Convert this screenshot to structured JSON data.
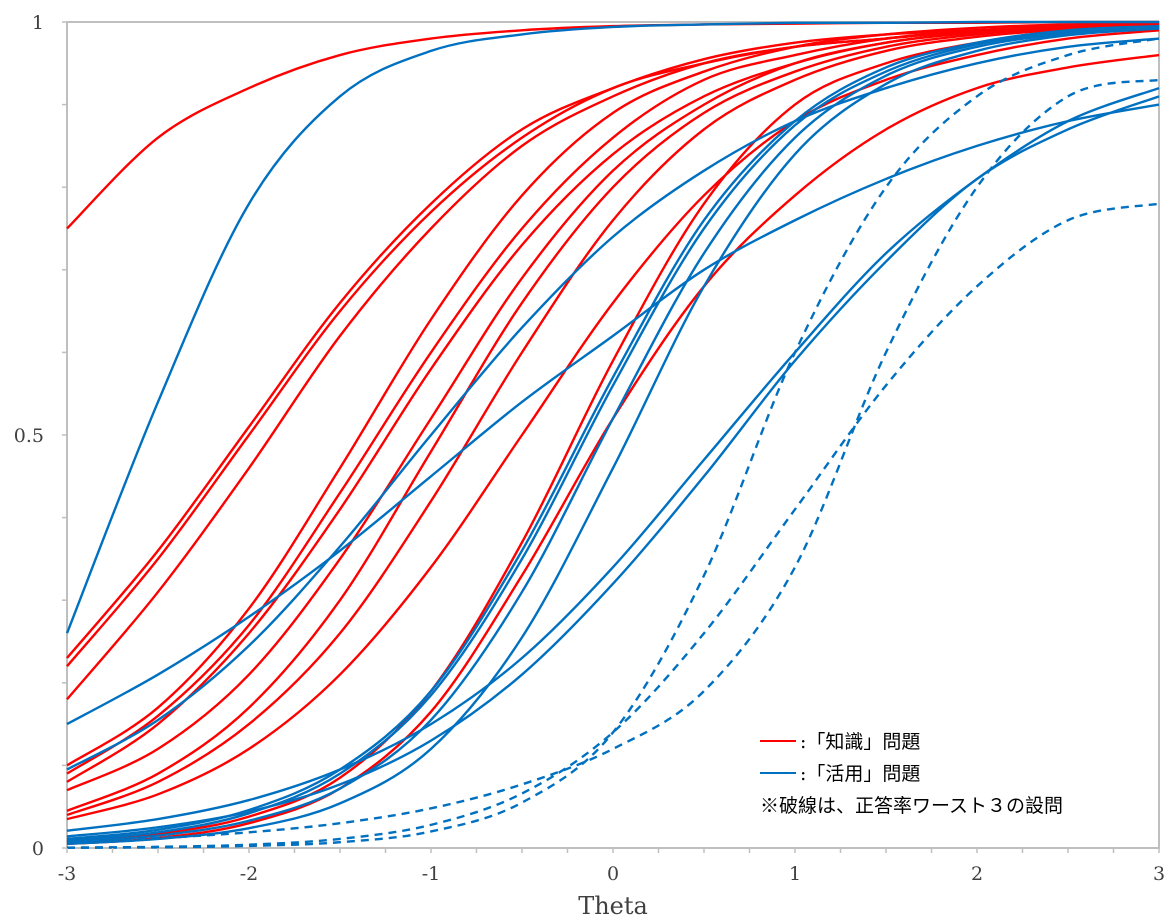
{
  "chart_data": {
    "type": "line",
    "xlabel": "Theta",
    "ylabel": "",
    "xlim": [
      -3,
      3
    ],
    "ylim": [
      0,
      1
    ],
    "x_ticks": [
      "-3",
      "-2",
      "-1",
      "0",
      "1",
      "2",
      "3"
    ],
    "x_tick_values": [
      -3,
      -2,
      -1,
      0,
      1,
      2,
      3
    ],
    "y_ticks": [
      "0",
      "0.5",
      "1"
    ],
    "y_tick_values": [
      0,
      0.5,
      1
    ],
    "grid": false,
    "legend_position": "bottom-right",
    "legend": [
      {
        "label": ":「知識」問題",
        "color": "#ff0000",
        "style": "solid"
      },
      {
        "label": ":「活用」問題",
        "color": "#0070c0",
        "style": "solid"
      }
    ],
    "note": "※破線は、正答率ワースト３の設問",
    "x": [
      -3,
      -2.5,
      -2,
      -1.5,
      -1,
      -0.5,
      0,
      0.5,
      1,
      1.5,
      2,
      2.5,
      3
    ],
    "series": [
      {
        "group": "知識",
        "color": "#ff0000",
        "dashed": false,
        "values": [
          0.75,
          0.86,
          0.92,
          0.96,
          0.98,
          0.99,
          0.995,
          0.997,
          0.998,
          0.999,
          0.999,
          1.0,
          1.0
        ]
      },
      {
        "group": "知識",
        "color": "#ff0000",
        "dashed": false,
        "values": [
          0.23,
          0.36,
          0.51,
          0.66,
          0.78,
          0.87,
          0.92,
          0.955,
          0.975,
          0.985,
          0.99,
          0.995,
          0.997
        ]
      },
      {
        "group": "知識",
        "color": "#ff0000",
        "dashed": false,
        "values": [
          0.22,
          0.35,
          0.5,
          0.65,
          0.77,
          0.86,
          0.92,
          0.95,
          0.97,
          0.98,
          0.99,
          0.994,
          0.996
        ]
      },
      {
        "group": "知識",
        "color": "#ff0000",
        "dashed": false,
        "values": [
          0.18,
          0.31,
          0.46,
          0.62,
          0.75,
          0.85,
          0.91,
          0.95,
          0.97,
          0.98,
          0.99,
          0.994,
          0.996
        ]
      },
      {
        "group": "知識",
        "color": "#ff0000",
        "dashed": false,
        "values": [
          0.1,
          0.17,
          0.29,
          0.46,
          0.64,
          0.79,
          0.89,
          0.94,
          0.97,
          0.985,
          0.993,
          0.997,
          0.998
        ]
      },
      {
        "group": "知識",
        "color": "#ff0000",
        "dashed": false,
        "values": [
          0.09,
          0.16,
          0.27,
          0.43,
          0.6,
          0.75,
          0.86,
          0.93,
          0.96,
          0.98,
          0.99,
          0.995,
          0.998
        ]
      },
      {
        "group": "知識",
        "color": "#ff0000",
        "dashed": false,
        "values": [
          0.08,
          0.15,
          0.26,
          0.41,
          0.58,
          0.73,
          0.84,
          0.91,
          0.95,
          0.975,
          0.987,
          0.993,
          0.996
        ]
      },
      {
        "group": "知識",
        "color": "#ff0000",
        "dashed": false,
        "values": [
          0.07,
          0.12,
          0.21,
          0.35,
          0.52,
          0.69,
          0.82,
          0.9,
          0.95,
          0.975,
          0.988,
          0.994,
          0.997
        ]
      },
      {
        "group": "知識",
        "color": "#ff0000",
        "dashed": false,
        "values": [
          0.045,
          0.09,
          0.17,
          0.3,
          0.48,
          0.66,
          0.8,
          0.89,
          0.94,
          0.97,
          0.985,
          0.993,
          0.996
        ]
      },
      {
        "group": "知識",
        "color": "#ff0000",
        "dashed": false,
        "values": [
          0.04,
          0.08,
          0.15,
          0.26,
          0.42,
          0.6,
          0.76,
          0.87,
          0.93,
          0.965,
          0.982,
          0.991,
          0.995
        ]
      },
      {
        "group": "知識",
        "color": "#ff0000",
        "dashed": false,
        "values": [
          0.035,
          0.065,
          0.12,
          0.21,
          0.34,
          0.5,
          0.66,
          0.79,
          0.88,
          0.93,
          0.96,
          0.98,
          0.99
        ]
      },
      {
        "group": "知識",
        "color": "#ff0000",
        "dashed": false,
        "values": [
          0.008,
          0.017,
          0.038,
          0.085,
          0.19,
          0.37,
          0.59,
          0.78,
          0.9,
          0.95,
          0.975,
          0.99,
          0.995
        ]
      },
      {
        "group": "知識",
        "color": "#ff0000",
        "dashed": false,
        "values": [
          0.005,
          0.012,
          0.03,
          0.072,
          0.165,
          0.33,
          0.52,
          0.68,
          0.79,
          0.87,
          0.92,
          0.945,
          0.96
        ]
      },
      {
        "group": "活用",
        "color": "#0070c0",
        "dashed": false,
        "values": [
          0.26,
          0.54,
          0.78,
          0.91,
          0.965,
          0.985,
          0.994,
          0.997,
          0.999,
          0.999,
          1.0,
          1.0,
          1.0
        ]
      },
      {
        "group": "活用",
        "color": "#0070c0",
        "dashed": false,
        "values": [
          0.15,
          0.21,
          0.28,
          0.36,
          0.45,
          0.54,
          0.62,
          0.7,
          0.76,
          0.81,
          0.85,
          0.88,
          0.9
        ]
      },
      {
        "group": "活用",
        "color": "#0070c0",
        "dashed": false,
        "values": [
          0.095,
          0.155,
          0.245,
          0.365,
          0.5,
          0.63,
          0.74,
          0.82,
          0.88,
          0.92,
          0.95,
          0.97,
          0.98
        ]
      },
      {
        "group": "活用",
        "color": "#0070c0",
        "dashed": false,
        "values": [
          0.011,
          0.022,
          0.046,
          0.095,
          0.19,
          0.36,
          0.57,
          0.76,
          0.88,
          0.945,
          0.975,
          0.99,
          0.995
        ]
      },
      {
        "group": "活用",
        "color": "#0070c0",
        "dashed": false,
        "values": [
          0.009,
          0.019,
          0.042,
          0.09,
          0.185,
          0.35,
          0.56,
          0.75,
          0.875,
          0.94,
          0.973,
          0.988,
          0.994
        ]
      },
      {
        "group": "活用",
        "color": "#0070c0",
        "dashed": false,
        "values": [
          0.007,
          0.015,
          0.033,
          0.072,
          0.155,
          0.31,
          0.52,
          0.72,
          0.86,
          0.935,
          0.97,
          0.986,
          0.993
        ]
      },
      {
        "group": "活用",
        "color": "#0070c0",
        "dashed": false,
        "values": [
          0.005,
          0.011,
          0.024,
          0.054,
          0.12,
          0.255,
          0.46,
          0.68,
          0.84,
          0.925,
          0.965,
          0.984,
          0.992
        ]
      },
      {
        "group": "活用",
        "color": "#0070c0",
        "dashed": false,
        "values": [
          0.021,
          0.035,
          0.058,
          0.095,
          0.15,
          0.23,
          0.34,
          0.47,
          0.6,
          0.72,
          0.81,
          0.88,
          0.92
        ]
      },
      {
        "group": "活用",
        "color": "#0070c0",
        "dashed": false,
        "values": [
          0.014,
          0.025,
          0.044,
          0.077,
          0.13,
          0.21,
          0.32,
          0.45,
          0.59,
          0.71,
          0.81,
          0.87,
          0.91
        ]
      },
      {
        "group": "活用",
        "color": "#0070c0",
        "dashed": true,
        "values": [
          0.0003,
          0.0009,
          0.0025,
          0.007,
          0.02,
          0.055,
          0.14,
          0.33,
          0.6,
          0.8,
          0.91,
          0.96,
          0.98
        ]
      },
      {
        "group": "活用",
        "color": "#0070c0",
        "dashed": true,
        "values": [
          0.008,
          0.012,
          0.019,
          0.03,
          0.048,
          0.077,
          0.12,
          0.19,
          0.34,
          0.6,
          0.8,
          0.91,
          0.93
        ]
      },
      {
        "group": "活用",
        "color": "#0070c0",
        "dashed": true,
        "values": [
          0.0005,
          0.0014,
          0.004,
          0.011,
          0.028,
          0.066,
          0.14,
          0.26,
          0.41,
          0.56,
          0.68,
          0.76,
          0.78
        ]
      }
    ]
  }
}
